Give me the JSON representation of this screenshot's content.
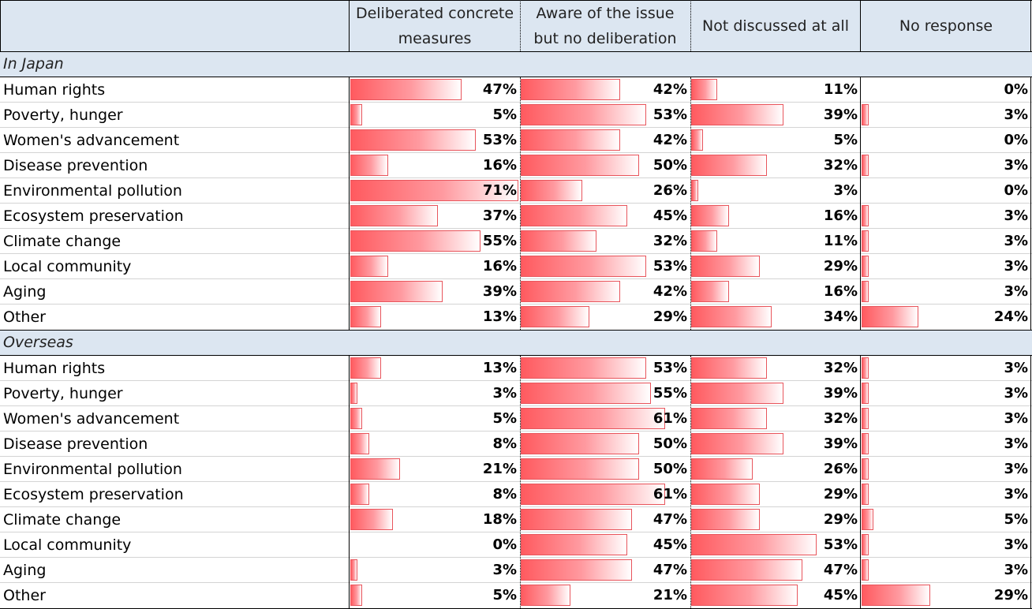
{
  "chart_data": {
    "type": "table",
    "title": "",
    "columns": [
      "Deliberated concrete measures",
      "Aware of the issue but no deliberation",
      "Not discussed at all",
      "No response"
    ],
    "column_lines": [
      [
        "Deliberated concrete",
        "measures"
      ],
      [
        "Aware of the issue",
        "but no deliberation"
      ],
      [
        "Not discussed at all"
      ],
      [
        "No response"
      ]
    ],
    "sections": [
      {
        "name": "In Japan",
        "rows": [
          {
            "label": "Human rights",
            "values": [
              47,
              42,
              11,
              0
            ]
          },
          {
            "label": "Poverty, hunger",
            "values": [
              5,
              53,
              39,
              3
            ]
          },
          {
            "label": "Women's advancement",
            "values": [
              53,
              42,
              5,
              0
            ]
          },
          {
            "label": "Disease prevention",
            "values": [
              16,
              50,
              32,
              3
            ]
          },
          {
            "label": "Environmental pollution",
            "values": [
              71,
              26,
              3,
              0
            ]
          },
          {
            "label": "Ecosystem preservation",
            "values": [
              37,
              45,
              16,
              3
            ]
          },
          {
            "label": "Climate change",
            "values": [
              55,
              32,
              11,
              3
            ]
          },
          {
            "label": "Local community",
            "values": [
              16,
              53,
              29,
              3
            ]
          },
          {
            "label": "Aging",
            "values": [
              39,
              42,
              16,
              3
            ]
          },
          {
            "label": "Other",
            "values": [
              13,
              29,
              34,
              24
            ]
          }
        ]
      },
      {
        "name": "Overseas",
        "rows": [
          {
            "label": "Human rights",
            "values": [
              13,
              53,
              32,
              3
            ]
          },
          {
            "label": "Poverty, hunger",
            "values": [
              3,
              55,
              39,
              3
            ]
          },
          {
            "label": "Women's advancement",
            "values": [
              5,
              61,
              32,
              3
            ]
          },
          {
            "label": "Disease prevention",
            "values": [
              8,
              50,
              39,
              3
            ]
          },
          {
            "label": "Environmental pollution",
            "values": [
              21,
              50,
              26,
              3
            ]
          },
          {
            "label": "Ecosystem preservation",
            "values": [
              8,
              61,
              29,
              3
            ]
          },
          {
            "label": "Climate change",
            "values": [
              18,
              47,
              29,
              5
            ]
          },
          {
            "label": "Local community",
            "values": [
              0,
              45,
              53,
              3
            ]
          },
          {
            "label": "Aging",
            "values": [
              3,
              47,
              47,
              3
            ]
          },
          {
            "label": "Other",
            "values": [
              5,
              21,
              45,
              29
            ]
          }
        ]
      }
    ],
    "value_suffix": "%",
    "bar_scale_max": 71,
    "colors": {
      "bar_start": "#ff5a5f",
      "bar_end": "#ffffff",
      "bar_border": "#e8555c",
      "header_bg": "#dce6f1"
    }
  }
}
